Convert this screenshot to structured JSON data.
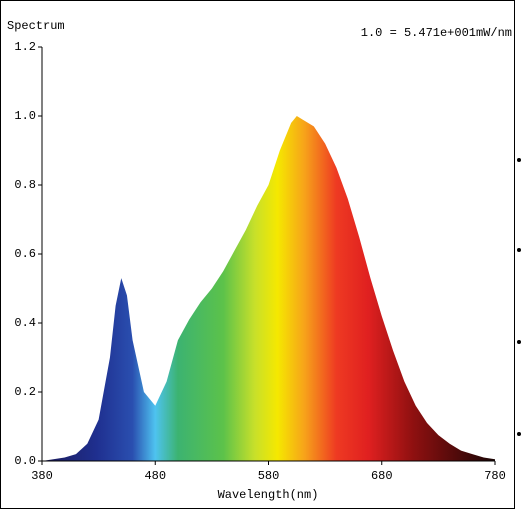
{
  "chart_data": {
    "type": "area",
    "title": "Spectrum",
    "annotation": "1.0 = 5.471e+001mW/nm",
    "x_label": "Wavelength(nm)",
    "x": [
      380,
      390,
      400,
      410,
      420,
      430,
      440,
      445,
      450,
      455,
      460,
      470,
      480,
      490,
      500,
      510,
      520,
      530,
      540,
      550,
      560,
      570,
      580,
      590,
      600,
      605,
      610,
      620,
      630,
      640,
      650,
      660,
      670,
      680,
      690,
      700,
      710,
      720,
      730,
      740,
      750,
      760,
      770,
      780
    ],
    "values": [
      0.0,
      0.005,
      0.01,
      0.02,
      0.05,
      0.12,
      0.3,
      0.45,
      0.53,
      0.48,
      0.35,
      0.2,
      0.16,
      0.23,
      0.35,
      0.41,
      0.46,
      0.5,
      0.55,
      0.61,
      0.67,
      0.74,
      0.8,
      0.9,
      0.98,
      1.0,
      0.99,
      0.97,
      0.92,
      0.85,
      0.76,
      0.65,
      0.53,
      0.42,
      0.32,
      0.23,
      0.16,
      0.11,
      0.075,
      0.05,
      0.03,
      0.02,
      0.01,
      0.005
    ],
    "xlim": [
      380,
      780
    ],
    "xticks": [
      380,
      480,
      580,
      680,
      780
    ],
    "ylim": [
      0,
      1.2
    ],
    "yticks": [
      {
        "value": 0,
        "label": "0.0"
      },
      0.2,
      0.4,
      0.6,
      0.8,
      {
        "value": 1,
        "label": "1.0"
      },
      1.2
    ]
  }
}
